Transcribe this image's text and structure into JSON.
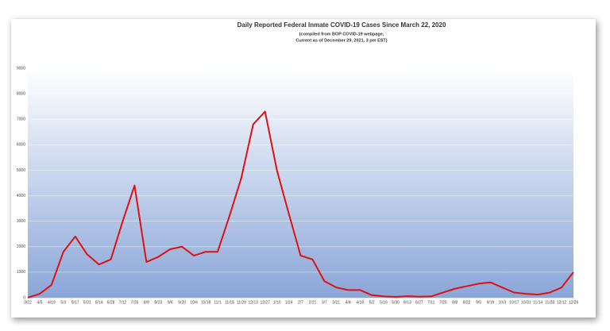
{
  "chart_data": {
    "type": "line",
    "title": "Daily Reported Federal Inmate COVID-19 Cases Since March 22, 2020",
    "subtitle": [
      "(compiled from BOP COVID-19 webpage,",
      "Current as of December 29, 2021, 3 pm EST)"
    ],
    "categories": [
      "3/22",
      "4/5",
      "4/19",
      "5/3",
      "5/17",
      "5/31",
      "6/14",
      "6/28",
      "7/12",
      "7/26",
      "8/9",
      "8/23",
      "9/6",
      "9/20",
      "10/4",
      "10/18",
      "11/1",
      "11/15",
      "11/29",
      "12/13",
      "12/27",
      "1/10",
      "1/24",
      "2/7",
      "2/21",
      "3/7",
      "3/21",
      "4/4",
      "4/18",
      "5/2",
      "5/16",
      "5/30",
      "6/13",
      "6/27",
      "7/11",
      "7/25",
      "8/8",
      "8/22",
      "9/5",
      "9/19",
      "10/3",
      "10/17",
      "10/31",
      "11/14",
      "11/28",
      "12/12",
      "12/26"
    ],
    "values": [
      0,
      150,
      500,
      1800,
      2400,
      1700,
      1300,
      1500,
      3000,
      4400,
      1400,
      1600,
      1900,
      2000,
      1650,
      1800,
      1800,
      3200,
      4700,
      6800,
      7300,
      5000,
      3300,
      1650,
      1500,
      650,
      400,
      300,
      300,
      100,
      50,
      30,
      60,
      40,
      50,
      200,
      350,
      450,
      550,
      600,
      400,
      200,
      150,
      120,
      200,
      400,
      1000
    ],
    "color": "#e01010",
    "ylim": [
      0,
      9000
    ],
    "yticks": [
      0,
      1000,
      2000,
      3000,
      4000,
      5000,
      6000,
      7000,
      8000,
      9000
    ],
    "grid": true
  }
}
